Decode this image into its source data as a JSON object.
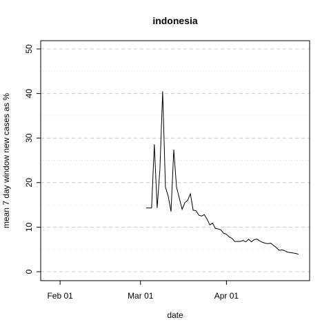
{
  "chart_data": {
    "type": "line",
    "title": "indonesia",
    "xlabel": "date",
    "ylabel": "mean  7  day window new cases as %",
    "ylim": [
      0,
      50
    ],
    "xlim": [
      "2020-01-25",
      "2020-05-01"
    ],
    "x_ticks": [
      {
        "date": "2020-02-01",
        "label": "Feb 01"
      },
      {
        "date": "2020-03-01",
        "label": "Mar 01"
      },
      {
        "date": "2020-04-01",
        "label": "Apr 01"
      }
    ],
    "y_ticks": [
      0,
      10,
      20,
      30,
      40,
      50
    ],
    "y_minor_grid": [
      5,
      15,
      25,
      35,
      45
    ],
    "grid": true,
    "series": [
      {
        "points": [
          [
            "2020-03-03",
            14.3
          ],
          [
            "2020-03-05",
            14.3
          ],
          [
            "2020-03-06",
            28.6
          ],
          [
            "2020-03-07",
            14.3
          ],
          [
            "2020-03-08",
            23.0
          ],
          [
            "2020-03-09",
            40.5
          ],
          [
            "2020-03-10",
            19.0
          ],
          [
            "2020-03-11",
            17.0
          ],
          [
            "2020-03-12",
            13.5
          ],
          [
            "2020-03-13",
            27.4
          ],
          [
            "2020-03-14",
            19.0
          ],
          [
            "2020-03-15",
            16.5
          ],
          [
            "2020-03-16",
            14.0
          ],
          [
            "2020-03-17",
            15.5
          ],
          [
            "2020-03-18",
            16.0
          ],
          [
            "2020-03-19",
            17.5
          ],
          [
            "2020-03-20",
            13.8
          ],
          [
            "2020-03-21",
            13.7
          ],
          [
            "2020-03-22",
            12.7
          ],
          [
            "2020-03-23",
            12.5
          ],
          [
            "2020-03-24",
            12.8
          ],
          [
            "2020-03-25",
            11.8
          ],
          [
            "2020-03-26",
            10.5
          ],
          [
            "2020-03-27",
            10.9
          ],
          [
            "2020-03-28",
            9.7
          ],
          [
            "2020-03-29",
            9.6
          ],
          [
            "2020-03-30",
            9.4
          ],
          [
            "2020-03-31",
            8.6
          ],
          [
            "2020-04-01",
            8.4
          ],
          [
            "2020-04-02",
            7.8
          ],
          [
            "2020-04-03",
            7.5
          ],
          [
            "2020-04-04",
            6.8
          ],
          [
            "2020-04-05",
            6.8
          ],
          [
            "2020-04-06",
            6.8
          ],
          [
            "2020-04-07",
            7.0
          ],
          [
            "2020-04-08",
            6.7
          ],
          [
            "2020-04-09",
            7.3
          ],
          [
            "2020-04-10",
            6.7
          ],
          [
            "2020-04-11",
            7.2
          ],
          [
            "2020-04-12",
            7.3
          ],
          [
            "2020-04-13",
            6.9
          ],
          [
            "2020-04-14",
            6.6
          ],
          [
            "2020-04-15",
            6.4
          ],
          [
            "2020-04-16",
            6.3
          ],
          [
            "2020-04-17",
            6.4
          ],
          [
            "2020-04-18",
            5.9
          ],
          [
            "2020-04-19",
            5.4
          ],
          [
            "2020-04-20",
            4.8
          ],
          [
            "2020-04-21",
            4.9
          ],
          [
            "2020-04-22",
            4.7
          ],
          [
            "2020-04-23",
            4.4
          ],
          [
            "2020-04-24",
            4.3
          ],
          [
            "2020-04-25",
            4.2
          ],
          [
            "2020-04-26",
            4.1
          ],
          [
            "2020-04-27",
            3.9
          ]
        ]
      }
    ]
  }
}
